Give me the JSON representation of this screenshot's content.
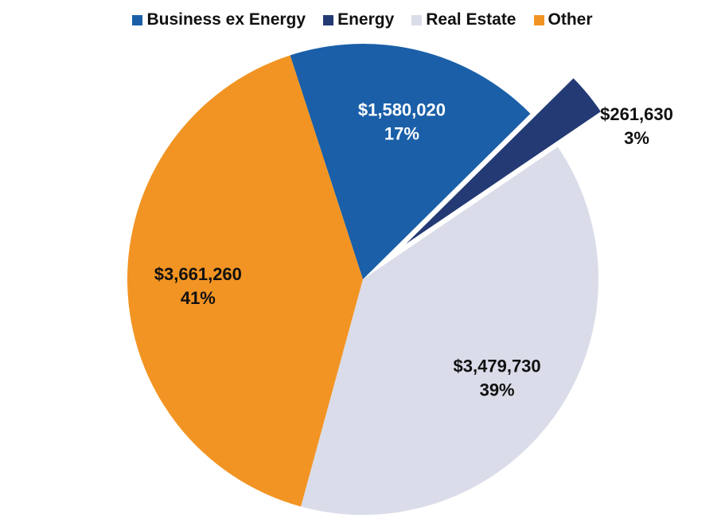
{
  "chart_data": {
    "type": "pie",
    "title": "",
    "legend_position": "top",
    "slices": [
      {
        "name": "Business ex Energy",
        "value": 1580020,
        "value_label": "$1,580,020",
        "percent_label": "17%",
        "color": "#1a5fa8",
        "label_color": "#ffffff",
        "exploded": false
      },
      {
        "name": "Energy",
        "value": 261630,
        "value_label": "$261,630",
        "percent_label": "3%",
        "color": "#243a75",
        "label_color": "#111111",
        "exploded": true
      },
      {
        "name": "Real Estate",
        "value": 3479730,
        "value_label": "$3,479,730",
        "percent_label": "39%",
        "color": "#dadce9",
        "label_color": "#111111",
        "exploded": false
      },
      {
        "name": "Other",
        "value": 3661260,
        "value_label": "$3,661,260",
        "percent_label": "41%",
        "color": "#f29423",
        "label_color": "#111111",
        "exploded": false
      }
    ]
  }
}
